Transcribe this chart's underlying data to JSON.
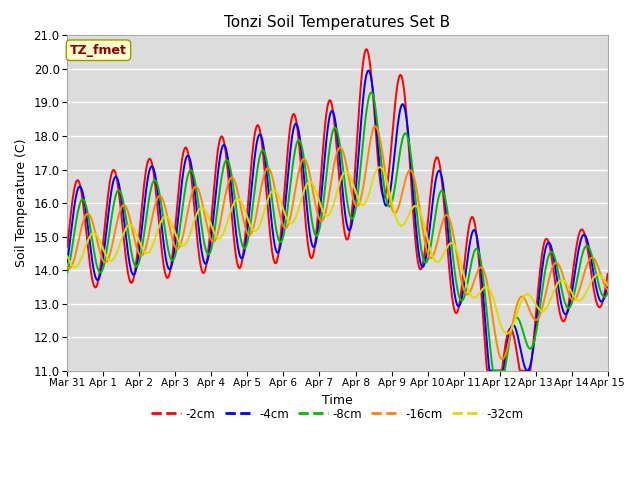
{
  "title": "Tonzi Soil Temperatures Set B",
  "xlabel": "Time",
  "ylabel": "Soil Temperature (C)",
  "ylim": [
    11.0,
    21.0
  ],
  "yticks": [
    11.0,
    12.0,
    13.0,
    14.0,
    15.0,
    16.0,
    17.0,
    18.0,
    19.0,
    20.0,
    21.0
  ],
  "xtick_labels": [
    "Mar 31",
    "Apr 1",
    "Apr 2",
    "Apr 3",
    "Apr 4",
    "Apr 5",
    "Apr 6",
    "Apr 7",
    "Apr 8",
    "Apr 9",
    "Apr 10",
    "Apr 11",
    "Apr 12",
    "Apr 13",
    "Apr 14",
    "Apr 15"
  ],
  "annotation_text": "TZ_fmet",
  "annotation_color": "#8B0000",
  "annotation_bg": "#FFFFCC",
  "series_colors": [
    "#FF0000",
    "#0000FF",
    "#00BB00",
    "#FF8800",
    "#DDDD00"
  ],
  "series_labels": [
    "-2cm",
    "-4cm",
    "-8cm",
    "-16cm",
    "-32cm"
  ],
  "background_color": "#DCDCDC",
  "grid_color": "#FFFFFF",
  "line_width": 1.4
}
